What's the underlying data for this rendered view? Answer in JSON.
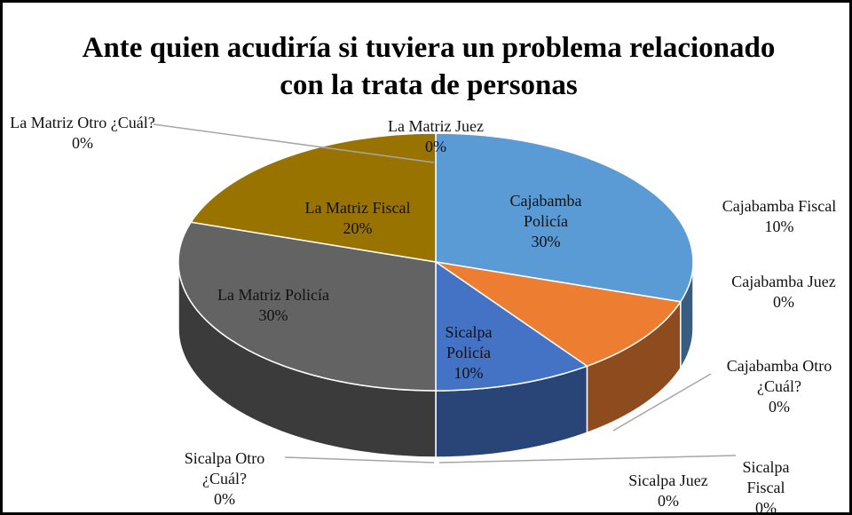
{
  "chart_data": {
    "type": "pie3d",
    "title": "Ante quien acudiría si tuviera un problema relacionado con la trata de personas",
    "categories": [
      "Cajabamba Policía",
      "Cajabamba Fiscal",
      "Cajabamba Juez",
      "Cajabamba Otro ¿Cuál?",
      "Sicalpa Policía",
      "Sicalpa Fiscal",
      "Sicalpa Juez",
      "Sicalpa Otro ¿Cuál?",
      "La Matriz Policía",
      "La Matriz Fiscal",
      "La Matriz Juez",
      "La Matriz Otro ¿Cuál?"
    ],
    "values": [
      30,
      10,
      0,
      0,
      10,
      0,
      0,
      0,
      30,
      20,
      0,
      0
    ],
    "value_labels": [
      "30%",
      "10%",
      "0%",
      "0%",
      "10%",
      "0%",
      "0%",
      "0%",
      "30%",
      "20%",
      "0%",
      "0%"
    ],
    "colors": [
      "#5b9bd5",
      "#ed7d31",
      "#a5a5a5",
      "#ffc000",
      "#4472c4",
      "#70ad47",
      "#264478",
      "#9e480e",
      "#636363",
      "#997300",
      "#255e91",
      "#43682b"
    ]
  }
}
